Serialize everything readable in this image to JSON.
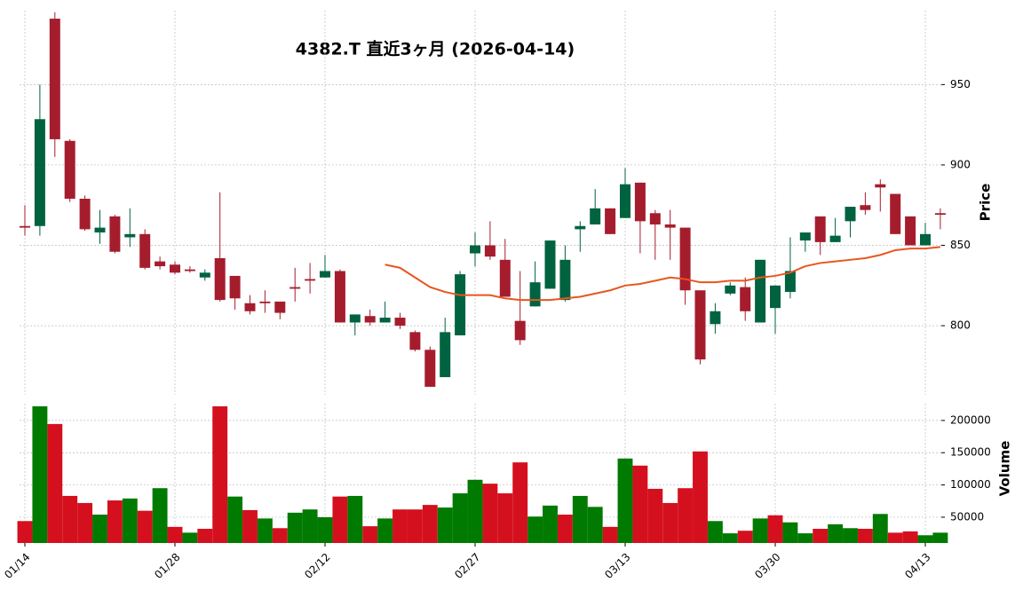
{
  "chart_data": {
    "type": "candlestick",
    "title": "4382.T  直近3ヶ月  (2026-04-14)",
    "ylabel": "Price",
    "y2label": "Volume",
    "categories": [
      "01/14",
      null,
      null,
      null,
      null,
      null,
      null,
      null,
      null,
      null,
      "01/28",
      null,
      null,
      null,
      null,
      null,
      null,
      null,
      null,
      null,
      "02/12",
      null,
      null,
      null,
      null,
      null,
      null,
      null,
      null,
      null,
      "02/27",
      null,
      null,
      null,
      null,
      null,
      null,
      null,
      null,
      null,
      "03/13",
      null,
      null,
      null,
      null,
      null,
      null,
      null,
      null,
      null,
      "03/30",
      null,
      null,
      null,
      null,
      null,
      null,
      null,
      null,
      null,
      "04/13",
      null
    ],
    "open": [
      862,
      862,
      991,
      915,
      879,
      858,
      868,
      855,
      857,
      840,
      838,
      835,
      830,
      842,
      831,
      814,
      815,
      815,
      824,
      829,
      830,
      834,
      802,
      806,
      802,
      805,
      796,
      785,
      768,
      794,
      845,
      850,
      841,
      803,
      812,
      823,
      816,
      860,
      863,
      873,
      867,
      889,
      870,
      863,
      861,
      822,
      801,
      820,
      824,
      802,
      811,
      821,
      853,
      868,
      852,
      865,
      875,
      888,
      882,
      868,
      850,
      870
    ],
    "high": [
      875,
      950,
      995,
      916,
      881,
      872,
      869,
      873,
      860,
      843,
      840,
      837,
      835,
      883,
      831,
      819,
      822,
      815,
      836,
      839,
      844,
      835,
      807,
      810,
      815,
      808,
      797,
      787,
      805,
      834,
      858,
      865,
      854,
      834,
      840,
      853,
      850,
      865,
      885,
      873,
      898,
      889,
      872,
      872,
      861,
      822,
      814,
      827,
      830,
      841,
      825,
      855,
      858,
      868,
      867,
      874,
      883,
      891,
      882,
      868,
      864,
      873
    ],
    "low": [
      856,
      856,
      905,
      877,
      859,
      851,
      845,
      849,
      835,
      835,
      832,
      833,
      828,
      815,
      810,
      807,
      808,
      804,
      815,
      820,
      830,
      802,
      794,
      800,
      802,
      798,
      784,
      762,
      768,
      794,
      837,
      841,
      818,
      788,
      812,
      823,
      815,
      846,
      863,
      857,
      867,
      845,
      841,
      841,
      813,
      776,
      795,
      819,
      803,
      802,
      795,
      817,
      846,
      844,
      852,
      855,
      869,
      871,
      857,
      850,
      850,
      860
    ],
    "close": [
      861,
      928.5,
      916,
      879,
      860,
      861,
      846,
      857,
      836,
      837,
      833,
      834,
      833,
      816,
      817,
      809,
      814,
      808,
      823,
      828,
      834,
      802,
      807,
      802,
      805,
      800,
      785,
      762,
      796,
      832,
      850,
      843,
      818,
      791,
      827,
      853,
      841,
      862,
      873,
      857,
      888,
      865,
      863,
      861,
      822,
      779,
      809,
      825,
      809,
      841,
      825,
      834,
      858,
      852,
      856,
      874,
      872,
      886,
      857,
      850,
      857,
      869
    ],
    "volume": [
      44000,
      222000,
      194500,
      83000,
      72000,
      54000,
      76000,
      79000,
      60000,
      95000,
      35000,
      26000,
      32000,
      222000,
      82000,
      61000,
      48000,
      33000,
      57000,
      62000,
      50000,
      82000,
      83000,
      36000,
      48000,
      62000,
      62000,
      69000,
      65000,
      87000,
      108000,
      102000,
      87000,
      135000,
      51000,
      68000,
      54000,
      83000,
      66000,
      35000,
      141000,
      130000,
      94000,
      72000,
      95000,
      152000,
      44000,
      25000,
      29000,
      48000,
      53000,
      42000,
      25000,
      32000,
      39000,
      33000,
      32000,
      55000,
      26000,
      28000,
      22000,
      26000
    ],
    "ma": [
      null,
      null,
      null,
      null,
      null,
      null,
      null,
      null,
      null,
      null,
      null,
      null,
      null,
      null,
      null,
      null,
      null,
      null,
      null,
      null,
      null,
      null,
      null,
      null,
      838,
      836,
      830,
      824,
      821,
      819,
      819,
      819,
      817,
      816,
      816,
      816,
      817,
      818,
      820,
      822,
      825,
      826,
      828,
      830,
      829,
      827,
      827,
      828,
      828,
      830,
      831,
      833,
      837,
      839,
      840,
      841,
      842,
      844,
      847,
      848,
      848,
      849
    ],
    "up_color": "#006340",
    "down_color": "#a51d2d",
    "volume_up_color": "#007a00",
    "volume_down_color": "#d5101e",
    "ma_color": "#e8561e",
    "ylim": [
      757,
      996
    ],
    "yticks": [
      800,
      850,
      900,
      950
    ],
    "y2lim": [
      10000,
      226000
    ],
    "y2ticks": [
      50000,
      100000,
      150000,
      200000
    ],
    "grid": true
  }
}
